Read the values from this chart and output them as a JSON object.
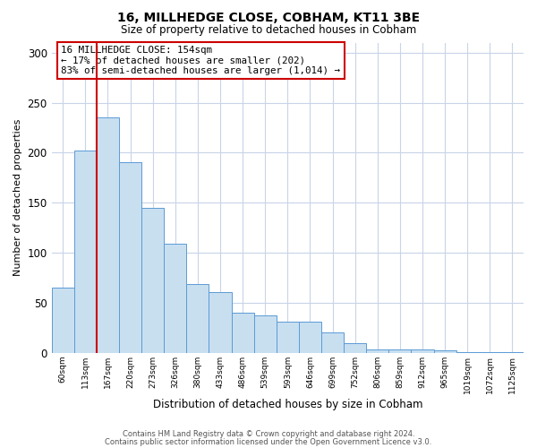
{
  "title": "16, MILLHEDGE CLOSE, COBHAM, KT11 3BE",
  "subtitle": "Size of property relative to detached houses in Cobham",
  "xlabel": "Distribution of detached houses by size in Cobham",
  "ylabel": "Number of detached properties",
  "bar_labels": [
    "60sqm",
    "113sqm",
    "167sqm",
    "220sqm",
    "273sqm",
    "326sqm",
    "380sqm",
    "433sqm",
    "486sqm",
    "539sqm",
    "593sqm",
    "646sqm",
    "699sqm",
    "752sqm",
    "806sqm",
    "859sqm",
    "912sqm",
    "965sqm",
    "1019sqm",
    "1072sqm",
    "1125sqm"
  ],
  "bar_values": [
    65,
    202,
    235,
    191,
    145,
    109,
    69,
    61,
    40,
    38,
    31,
    31,
    21,
    10,
    4,
    4,
    4,
    3,
    1,
    1,
    1
  ],
  "bar_color": "#c8dff0",
  "bar_edge_color": "#5b9bd5",
  "vline_x_index": 2,
  "vline_color": "#cc0000",
  "ylim": [
    0,
    310
  ],
  "yticks": [
    0,
    50,
    100,
    150,
    200,
    250,
    300
  ],
  "annotation_text": "16 MILLHEDGE CLOSE: 154sqm\n← 17% of detached houses are smaller (202)\n83% of semi-detached houses are larger (1,014) →",
  "annotation_box_color": "#ffffff",
  "annotation_box_edge": "#cc0000",
  "footer_line1": "Contains HM Land Registry data © Crown copyright and database right 2024.",
  "footer_line2": "Contains public sector information licensed under the Open Government Licence v3.0.",
  "background_color": "#ffffff",
  "grid_color": "#c8d4e8"
}
